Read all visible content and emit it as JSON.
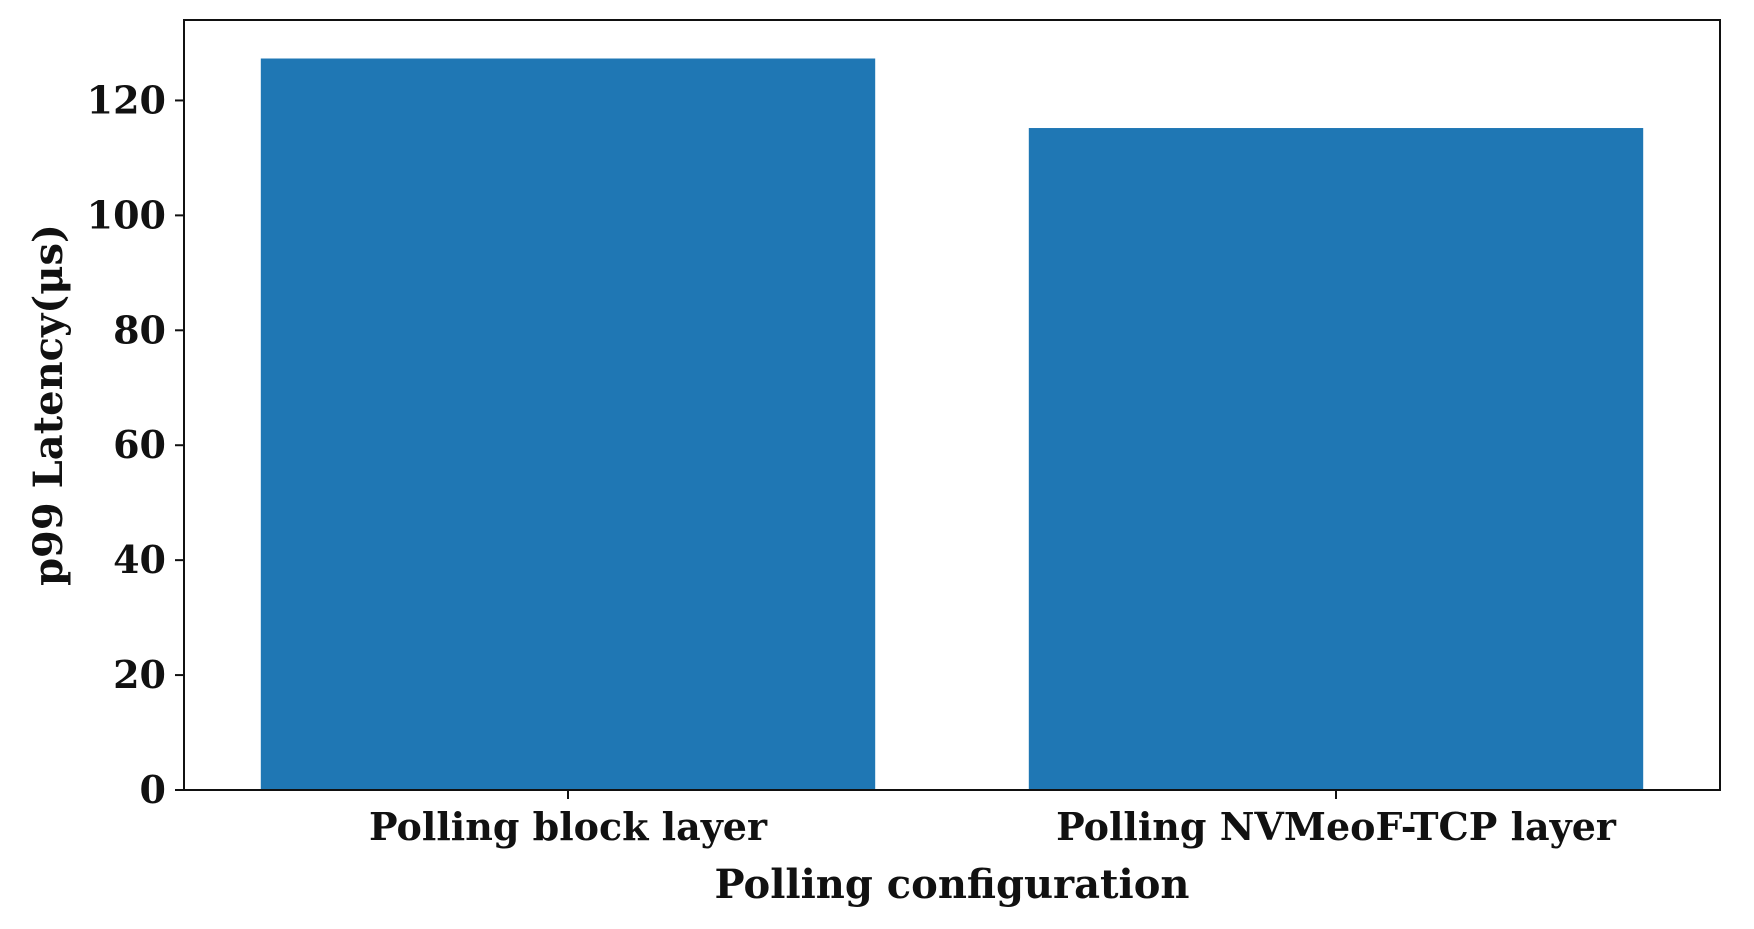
{
  "chart_data": {
    "type": "bar",
    "title": "",
    "xlabel": "Polling configuration",
    "ylabel": "p99 Latency(μs)",
    "categories": [
      "Polling block layer",
      "Polling NVMeoF-TCP layer"
    ],
    "series": [
      {
        "values": [
          127.3,
          115.2
        ]
      }
    ],
    "ylim": [
      0,
      134
    ],
    "yticks": [
      0,
      20,
      40,
      60,
      80,
      100,
      120
    ],
    "grid": false,
    "bar_color": "#1f77b4"
  }
}
